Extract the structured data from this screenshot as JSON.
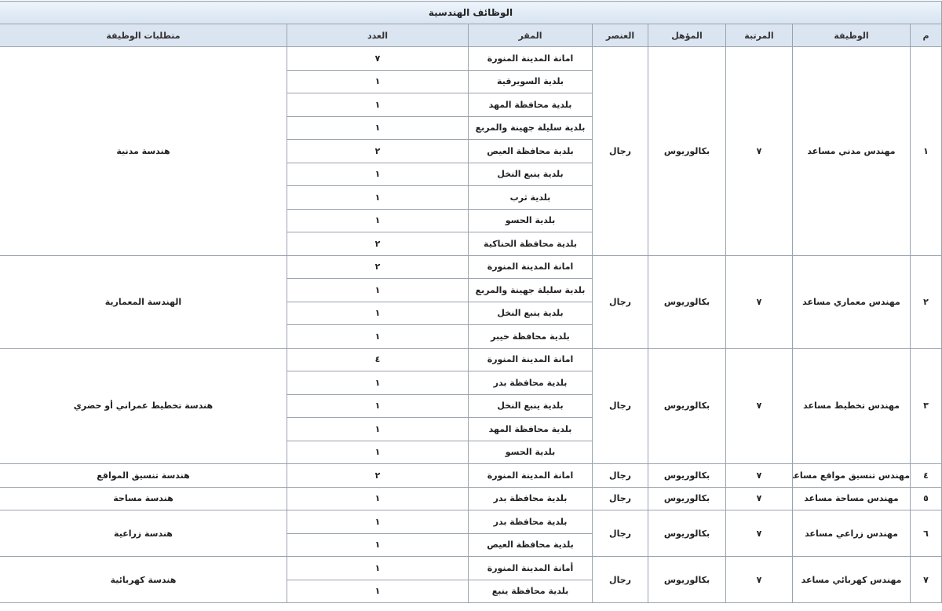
{
  "table": {
    "title": "الوظائف الهندسية",
    "headers": [
      "م",
      "الوظيفة",
      "المرتبة",
      "المؤهل",
      "العنصر",
      "المقر",
      "العدد",
      "متطلبات الوظيفة"
    ],
    "jobs": [
      {
        "number": "١",
        "title": "مهندس مدني مساعد",
        "rank": "٧",
        "qualification": "بكالوريوس",
        "gender": "رجال",
        "requirement": "هندسة مدنية",
        "locations": [
          {
            "place": "امانة المدينة المنورة",
            "count": "٧"
          },
          {
            "place": "بلدية السويرقية",
            "count": "١"
          },
          {
            "place": "بلدية محافظة المهد",
            "count": "١"
          },
          {
            "place": "بلدية سليلة جهينة والمربع",
            "count": "١"
          },
          {
            "place": "بلدية محافظة العيص",
            "count": "٢"
          },
          {
            "place": "بلدية ينبع النخل",
            "count": "١"
          },
          {
            "place": "بلدية ثرب",
            "count": "١"
          },
          {
            "place": "بلدية الحسو",
            "count": "١"
          },
          {
            "place": "بلدية محافظة الحناكية",
            "count": "٢"
          }
        ]
      },
      {
        "number": "٢",
        "title": "مهندس معماري مساعد",
        "rank": "٧",
        "qualification": "بكالوريوس",
        "gender": "رجال",
        "requirement": "الهندسة المعمارية",
        "locations": [
          {
            "place": "امانة المدينة المنورة",
            "count": "٢"
          },
          {
            "place": "بلدية سليلة جهينة والمربع",
            "count": "١"
          },
          {
            "place": "بلدية ينبع النخل",
            "count": "١"
          },
          {
            "place": "بلدية محافظة خيبر",
            "count": "١"
          }
        ]
      },
      {
        "number": "٣",
        "title": "مهندس تخطيط مساعد",
        "rank": "٧",
        "qualification": "بكالوريوس",
        "gender": "رجال",
        "requirement": "هندسة تخطيط عمراني أو حضري",
        "locations": [
          {
            "place": "امانة المدينة المنورة",
            "count": "٤"
          },
          {
            "place": "بلدية محافظة بدر",
            "count": "١"
          },
          {
            "place": "بلدية ينبع النخل",
            "count": "١"
          },
          {
            "place": "بلدية محافظة المهد",
            "count": "١"
          },
          {
            "place": "بلدية الحسو",
            "count": "١"
          }
        ]
      },
      {
        "number": "٤",
        "title": "مهندس تنسيق مواقع مساعد",
        "rank": "٧",
        "qualification": "بكالوريوس",
        "gender": "رجال",
        "requirement": "هندسة تنسيق المواقع",
        "locations": [
          {
            "place": "امانة المدينة المنورة",
            "count": "٢"
          }
        ]
      },
      {
        "number": "٥",
        "title": "مهندس مساحة مساعد",
        "rank": "٧",
        "qualification": "بكالوريوس",
        "gender": "رجال",
        "requirement": "هندسة مساحة",
        "locations": [
          {
            "place": "بلدية محافظة بدر",
            "count": "١"
          }
        ]
      },
      {
        "number": "٦",
        "title": "مهندس زراعي مساعد",
        "rank": "٧",
        "qualification": "بكالوريوس",
        "gender": "رجال",
        "requirement": "هندسة زراعية",
        "locations": [
          {
            "place": "بلدية محافظة بدر",
            "count": "١"
          },
          {
            "place": "بلدية محافظة العيص",
            "count": "١"
          }
        ]
      },
      {
        "number": "٧",
        "title": "مهندس كهربائي مساعد",
        "rank": "٧",
        "qualification": "بكالوريوس",
        "gender": "رجال",
        "requirement": "هندسة كهربائية",
        "locations": [
          {
            "place": "أمانة المدينة المنورة",
            "count": "١"
          },
          {
            "place": "بلدية محافظة ينبع",
            "count": "١"
          }
        ]
      }
    ]
  }
}
